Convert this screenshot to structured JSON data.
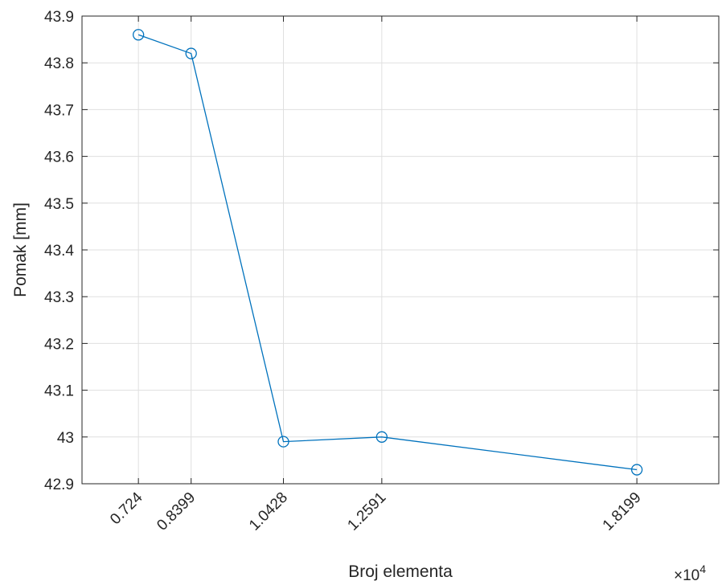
{
  "chart_data": {
    "type": "line",
    "x": [
      0.724,
      0.8399,
      1.0428,
      1.2591,
      1.8199
    ],
    "x_tick_labels": [
      "0.724",
      "0.8399",
      "1.0428",
      "1.2591",
      "1.8199"
    ],
    "x_multiplier": "×10",
    "x_multiplier_exp": "4",
    "xlim": [
      0.6,
      2.0
    ],
    "y_ticks": [
      42.9,
      43,
      43.1,
      43.2,
      43.3,
      43.4,
      43.5,
      43.6,
      43.7,
      43.8,
      43.9
    ],
    "y_tick_labels": [
      "42.9",
      "43",
      "43.1",
      "43.2",
      "43.3",
      "43.4",
      "43.5",
      "43.6",
      "43.7",
      "43.8",
      "43.9"
    ],
    "ylim": [
      42.9,
      43.9
    ],
    "series": [
      {
        "values": [
          43.86,
          43.82,
          42.99,
          43.0,
          42.93
        ],
        "color": "#0072bd",
        "marker": "circle"
      }
    ],
    "title": "",
    "xlabel": "Broj elementa",
    "ylabel": "Pomak [mm]",
    "grid": true
  }
}
